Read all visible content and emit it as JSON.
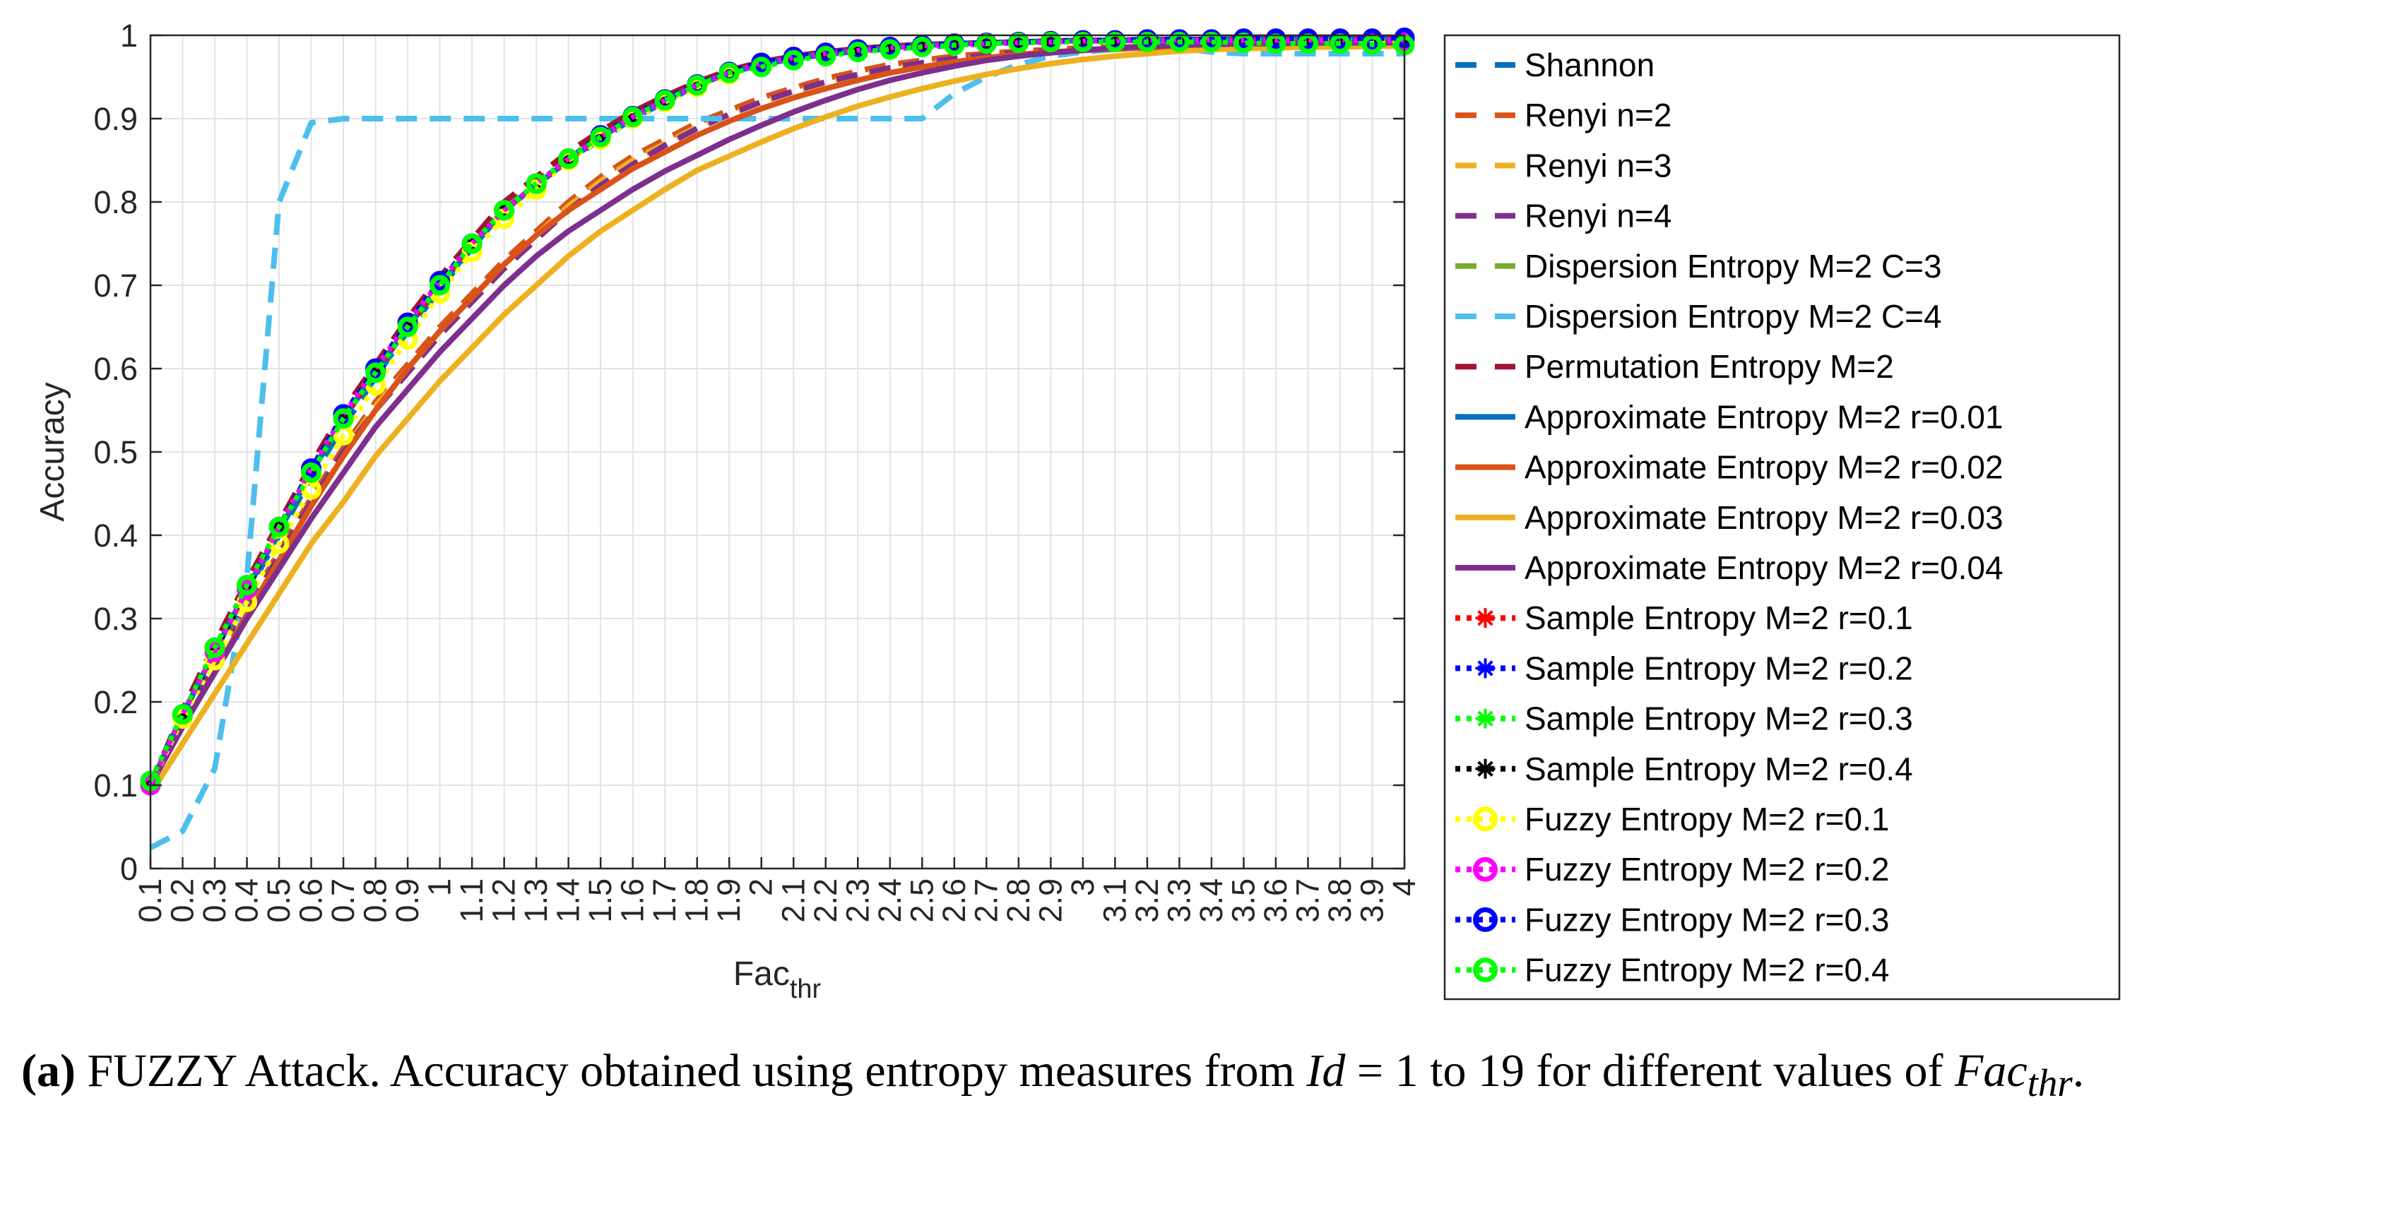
{
  "chart_data": {
    "type": "line",
    "title": "",
    "xlabel": "Fac",
    "xlabel_sub": "thr",
    "ylabel": "Accuracy",
    "ylim": [
      0,
      1
    ],
    "xlim": [
      0.1,
      4
    ],
    "grid": true,
    "legend_position": "outside-right",
    "yticks": [
      "0",
      "0.1",
      "0.2",
      "0.3",
      "0.4",
      "0.5",
      "0.6",
      "0.7",
      "0.8",
      "0.9",
      "1"
    ],
    "xticks": [
      "0.1",
      "0.2",
      "0.3",
      "0.4",
      "0.5",
      "0.6",
      "0.7",
      "0.8",
      "0.9",
      "1",
      "1.1",
      "1.2",
      "1.3",
      "1.4",
      "1.5",
      "1.6",
      "1.7",
      "1.8",
      "1.9",
      "2",
      "2.1",
      "2.2",
      "2.3",
      "2.4",
      "2.5",
      "2.6",
      "2.7",
      "2.8",
      "2.9",
      "3",
      "3.1",
      "3.2",
      "3.3",
      "3.4",
      "3.5",
      "3.6",
      "3.7",
      "3.8",
      "3.9",
      "4"
    ],
    "x": [
      0.1,
      0.2,
      0.3,
      0.4,
      0.5,
      0.6,
      0.7,
      0.8,
      0.9,
      1.0,
      1.1,
      1.2,
      1.3,
      1.4,
      1.5,
      1.6,
      1.7,
      1.8,
      1.9,
      2.0,
      2.1,
      2.2,
      2.3,
      2.4,
      2.5,
      2.6,
      2.7,
      2.8,
      2.9,
      3.0,
      3.1,
      3.2,
      3.3,
      3.4,
      3.5,
      3.6,
      3.7,
      3.8,
      3.9,
      4.0
    ],
    "series": [
      {
        "name": "Shannon",
        "color": "#0072BD",
        "style": "dashed",
        "values": [
          0.1,
          0.18,
          0.25,
          0.33,
          0.4,
          0.47,
          0.53,
          0.59,
          0.645,
          0.695,
          0.745,
          0.79,
          0.82,
          0.85,
          0.875,
          0.9,
          0.92,
          0.94,
          0.955,
          0.965,
          0.972,
          0.977,
          0.981,
          0.984,
          0.986,
          0.988,
          0.99,
          0.991,
          0.992,
          0.993,
          0.994,
          0.994,
          0.995,
          0.995,
          0.995,
          0.996,
          0.996,
          0.996,
          0.996,
          0.997
        ]
      },
      {
        "name": "Renyi n=2",
        "color": "#D95319",
        "style": "dashed",
        "values": [
          0.1,
          0.175,
          0.245,
          0.315,
          0.38,
          0.445,
          0.505,
          0.56,
          0.605,
          0.65,
          0.69,
          0.73,
          0.765,
          0.8,
          0.83,
          0.855,
          0.875,
          0.895,
          0.91,
          0.925,
          0.937,
          0.948,
          0.957,
          0.965,
          0.97,
          0.975,
          0.978,
          0.981,
          0.983,
          0.985,
          0.986,
          0.987,
          0.988,
          0.988,
          0.989,
          0.989,
          0.989,
          0.99,
          0.99,
          0.99
        ]
      },
      {
        "name": "Renyi n=3",
        "color": "#EDB120",
        "style": "dashed",
        "values": [
          0.1,
          0.17,
          0.24,
          0.31,
          0.375,
          0.44,
          0.5,
          0.555,
          0.6,
          0.645,
          0.685,
          0.725,
          0.76,
          0.795,
          0.825,
          0.85,
          0.87,
          0.89,
          0.905,
          0.92,
          0.932,
          0.943,
          0.952,
          0.96,
          0.966,
          0.971,
          0.975,
          0.978,
          0.98,
          0.982,
          0.983,
          0.984,
          0.985,
          0.985,
          0.986,
          0.986,
          0.986,
          0.987,
          0.987,
          0.987
        ]
      },
      {
        "name": "Renyi n=4",
        "color": "#7E2F8E",
        "style": "dashed",
        "values": [
          0.1,
          0.175,
          0.245,
          0.31,
          0.375,
          0.44,
          0.5,
          0.55,
          0.595,
          0.64,
          0.68,
          0.72,
          0.755,
          0.79,
          0.82,
          0.845,
          0.868,
          0.888,
          0.905,
          0.92,
          0.933,
          0.944,
          0.953,
          0.961,
          0.967,
          0.972,
          0.976,
          0.979,
          0.981,
          0.983,
          0.984,
          0.985,
          0.986,
          0.986,
          0.987,
          0.987,
          0.987,
          0.988,
          0.988,
          0.988
        ]
      },
      {
        "name": "Dispersion Entropy M=2 C=3",
        "color": "#77AC30",
        "style": "dashed",
        "values": [
          0.1,
          0.185,
          0.26,
          0.34,
          0.41,
          0.48,
          0.545,
          0.6,
          0.655,
          0.705,
          0.75,
          0.795,
          0.825,
          0.855,
          0.88,
          0.905,
          0.925,
          0.942,
          0.957,
          0.967,
          0.974,
          0.979,
          0.983,
          0.986,
          0.988,
          0.99,
          0.991,
          0.992,
          0.993,
          0.994,
          0.994,
          0.995,
          0.995,
          0.995,
          0.996,
          0.996,
          0.996,
          0.996,
          0.996,
          0.997
        ]
      },
      {
        "name": "Dispersion Entropy M=2 C=4",
        "color": "#4DBEEE",
        "style": "dashed",
        "values": [
          0.025,
          0.045,
          0.12,
          0.35,
          0.8,
          0.895,
          0.9,
          0.9,
          0.9,
          0.9,
          0.9,
          0.9,
          0.9,
          0.9,
          0.9,
          0.9,
          0.9,
          0.9,
          0.9,
          0.9,
          0.9,
          0.9,
          0.9,
          0.9,
          0.9,
          0.93,
          0.95,
          0.965,
          0.975,
          0.98,
          0.983,
          0.985,
          0.985,
          0.98,
          0.978,
          0.978,
          0.978,
          0.978,
          0.978,
          0.978
        ]
      },
      {
        "name": "Permutation Entropy M=2",
        "color": "#A2142F",
        "style": "dashed",
        "values": [
          0.1,
          0.19,
          0.27,
          0.345,
          0.415,
          0.485,
          0.55,
          0.605,
          0.66,
          0.71,
          0.755,
          0.8,
          0.83,
          0.86,
          0.885,
          0.908,
          0.927,
          0.944,
          0.958,
          0.968,
          0.975,
          0.98,
          0.984,
          0.987,
          0.989,
          0.99,
          0.991,
          0.992,
          0.993,
          0.994,
          0.994,
          0.995,
          0.995,
          0.995,
          0.996,
          0.996,
          0.996,
          0.996,
          0.996,
          0.996
        ]
      },
      {
        "name": "Approximate Entropy M=2 r=0.01",
        "color": "#0072BD",
        "style": "solid",
        "values": [
          0.1,
          0.185,
          0.26,
          0.335,
          0.405,
          0.475,
          0.54,
          0.595,
          0.65,
          0.7,
          0.745,
          0.79,
          0.82,
          0.85,
          0.877,
          0.902,
          0.922,
          0.94,
          0.955,
          0.966,
          0.973,
          0.978,
          0.982,
          0.985,
          0.988,
          0.99,
          0.991,
          0.992,
          0.993,
          0.994,
          0.994,
          0.995,
          0.995,
          0.995,
          0.996,
          0.996,
          0.996,
          0.996,
          0.996,
          0.997
        ]
      },
      {
        "name": "Approximate Entropy M=2 r=0.02",
        "color": "#D95319",
        "style": "solid",
        "values": [
          0.1,
          0.17,
          0.235,
          0.305,
          0.37,
          0.435,
          0.495,
          0.55,
          0.6,
          0.645,
          0.685,
          0.725,
          0.76,
          0.79,
          0.815,
          0.84,
          0.86,
          0.88,
          0.897,
          0.912,
          0.925,
          0.936,
          0.946,
          0.955,
          0.962,
          0.968,
          0.973,
          0.977,
          0.98,
          0.982,
          0.984,
          0.985,
          0.986,
          0.986,
          0.987,
          0.987,
          0.988,
          0.988,
          0.988,
          0.988
        ]
      },
      {
        "name": "Approximate Entropy M=2 r=0.03",
        "color": "#EDB120",
        "style": "solid",
        "values": [
          0.09,
          0.15,
          0.21,
          0.27,
          0.33,
          0.39,
          0.44,
          0.495,
          0.54,
          0.585,
          0.625,
          0.665,
          0.7,
          0.735,
          0.765,
          0.79,
          0.815,
          0.838,
          0.855,
          0.872,
          0.888,
          0.902,
          0.915,
          0.926,
          0.936,
          0.945,
          0.953,
          0.96,
          0.966,
          0.971,
          0.975,
          0.978,
          0.981,
          0.983,
          0.984,
          0.985,
          0.986,
          0.986,
          0.987,
          0.987
        ]
      },
      {
        "name": "Approximate Entropy M=2 r=0.04",
        "color": "#7E2F8E",
        "style": "solid",
        "values": [
          0.1,
          0.17,
          0.235,
          0.3,
          0.36,
          0.42,
          0.475,
          0.53,
          0.575,
          0.62,
          0.66,
          0.7,
          0.735,
          0.765,
          0.79,
          0.815,
          0.837,
          0.856,
          0.875,
          0.892,
          0.908,
          0.922,
          0.935,
          0.946,
          0.955,
          0.963,
          0.97,
          0.975,
          0.979,
          0.982,
          0.985,
          0.987,
          0.988,
          0.989,
          0.99,
          0.99,
          0.991,
          0.991,
          0.991,
          0.991
        ]
      },
      {
        "name": "Sample Entropy M=2 r=0.1",
        "color": "#FF0000",
        "style": "dotted",
        "marker": "star",
        "values": [
          0.1,
          0.185,
          0.26,
          0.335,
          0.41,
          0.48,
          0.54,
          0.595,
          0.65,
          0.7,
          0.75,
          0.79,
          0.82,
          0.85,
          0.878,
          0.902,
          0.922,
          0.94,
          0.955,
          0.966,
          0.973,
          0.978,
          0.982,
          0.985,
          0.988,
          0.99,
          0.991,
          0.992,
          0.993,
          0.994,
          0.994,
          0.995,
          0.995,
          0.995,
          0.996,
          0.996,
          0.996,
          0.996,
          0.996,
          0.997
        ]
      },
      {
        "name": "Sample Entropy M=2 r=0.2",
        "color": "#0000FF",
        "style": "dotted",
        "marker": "star",
        "values": [
          0.105,
          0.185,
          0.26,
          0.34,
          0.41,
          0.48,
          0.545,
          0.6,
          0.655,
          0.705,
          0.75,
          0.79,
          0.822,
          0.852,
          0.88,
          0.904,
          0.924,
          0.941,
          0.956,
          0.967,
          0.974,
          0.979,
          0.983,
          0.986,
          0.988,
          0.99,
          0.991,
          0.992,
          0.993,
          0.994,
          0.994,
          0.995,
          0.995,
          0.995,
          0.996,
          0.996,
          0.996,
          0.996,
          0.996,
          0.997
        ]
      },
      {
        "name": "Sample Entropy M=2 r=0.3",
        "color": "#00FF00",
        "style": "dotted",
        "marker": "star",
        "values": [
          0.105,
          0.185,
          0.265,
          0.34,
          0.41,
          0.48,
          0.545,
          0.6,
          0.655,
          0.705,
          0.75,
          0.79,
          0.822,
          0.852,
          0.88,
          0.903,
          0.923,
          0.941,
          0.956,
          0.966,
          0.973,
          0.978,
          0.982,
          0.985,
          0.987,
          0.989,
          0.99,
          0.991,
          0.992,
          0.993,
          0.993,
          0.994,
          0.994,
          0.994,
          0.994,
          0.994,
          0.994,
          0.994,
          0.994,
          0.994
        ]
      },
      {
        "name": "Sample Entropy M=2 r=0.4",
        "color": "#000000",
        "style": "dotted",
        "marker": "star",
        "values": [
          0.105,
          0.185,
          0.26,
          0.335,
          0.41,
          0.48,
          0.54,
          0.6,
          0.655,
          0.705,
          0.75,
          0.79,
          0.822,
          0.852,
          0.878,
          0.902,
          0.922,
          0.94,
          0.955,
          0.966,
          0.973,
          0.978,
          0.982,
          0.985,
          0.987,
          0.989,
          0.99,
          0.991,
          0.992,
          0.993,
          0.993,
          0.994,
          0.994,
          0.994,
          0.994,
          0.994,
          0.994,
          0.994,
          0.994,
          0.994
        ]
      },
      {
        "name": "Fuzzy Entropy M=2 r=0.1",
        "color": "#FFFF00",
        "style": "dotted",
        "marker": "circle",
        "values": [
          0.1,
          0.18,
          0.25,
          0.32,
          0.39,
          0.455,
          0.52,
          0.58,
          0.635,
          0.69,
          0.74,
          0.78,
          0.815,
          0.85,
          0.875,
          0.9,
          0.92,
          0.938,
          0.953,
          0.964,
          0.972,
          0.977,
          0.981,
          0.984,
          0.987,
          0.989,
          0.99,
          0.991,
          0.992,
          0.993,
          0.993,
          0.994,
          0.994,
          0.994,
          0.994,
          0.994,
          0.994,
          0.994,
          0.994,
          0.994
        ]
      },
      {
        "name": "Fuzzy Entropy M=2 r=0.2",
        "color": "#FF00FF",
        "style": "dotted",
        "marker": "circle",
        "values": [
          0.1,
          0.185,
          0.26,
          0.335,
          0.41,
          0.48,
          0.545,
          0.6,
          0.655,
          0.705,
          0.75,
          0.79,
          0.822,
          0.852,
          0.878,
          0.902,
          0.922,
          0.94,
          0.955,
          0.966,
          0.973,
          0.978,
          0.982,
          0.985,
          0.987,
          0.989,
          0.99,
          0.991,
          0.992,
          0.993,
          0.993,
          0.994,
          0.994,
          0.994,
          0.994,
          0.994,
          0.994,
          0.994,
          0.994,
          0.994
        ]
      },
      {
        "name": "Fuzzy Entropy M=2 r=0.3",
        "color": "#0000FF",
        "style": "dotted",
        "marker": "circle",
        "values": [
          0.105,
          0.185,
          0.265,
          0.34,
          0.41,
          0.48,
          0.545,
          0.6,
          0.655,
          0.705,
          0.75,
          0.79,
          0.822,
          0.852,
          0.88,
          0.903,
          0.923,
          0.941,
          0.956,
          0.967,
          0.974,
          0.979,
          0.983,
          0.986,
          0.988,
          0.99,
          0.991,
          0.992,
          0.993,
          0.994,
          0.994,
          0.995,
          0.995,
          0.995,
          0.996,
          0.996,
          0.996,
          0.996,
          0.996,
          0.997
        ]
      },
      {
        "name": "Fuzzy Entropy M=2 r=0.4",
        "color": "#00FF00",
        "style": "dotted",
        "marker": "circle",
        "values": [
          0.105,
          0.185,
          0.265,
          0.34,
          0.41,
          0.475,
          0.54,
          0.595,
          0.65,
          0.7,
          0.75,
          0.79,
          0.822,
          0.852,
          0.878,
          0.902,
          0.922,
          0.94,
          0.955,
          0.962,
          0.97,
          0.975,
          0.98,
          0.983,
          0.986,
          0.988,
          0.99,
          0.991,
          0.992,
          0.992,
          0.992,
          0.992,
          0.992,
          0.992,
          0.991,
          0.99,
          0.99,
          0.99,
          0.989,
          0.988
        ]
      }
    ]
  },
  "caption": {
    "label": "(a)",
    "text_a": " FUZZY Attack. Accuracy obtained using entropy measures from ",
    "id_var": "Id",
    "text_b": " = 1 to 19 for different values of ",
    "fac_var": "Fac",
    "fac_sub": "thr",
    "text_c": "."
  }
}
